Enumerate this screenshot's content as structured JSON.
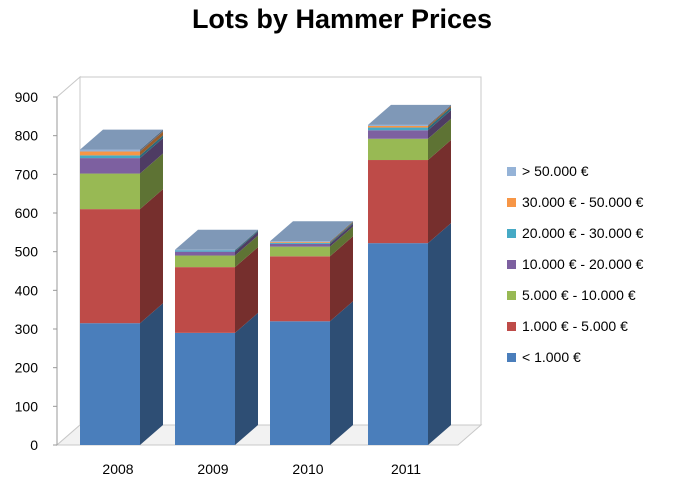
{
  "chart_data": {
    "type": "bar",
    "stacked": true,
    "three_d": true,
    "title": "Lots by Hammer Prices",
    "categories": [
      "2008",
      "2009",
      "2010",
      "2011"
    ],
    "ylim": [
      0,
      900
    ],
    "yticks": [
      0,
      100,
      200,
      300,
      400,
      500,
      600,
      700,
      800,
      900
    ],
    "grid": false,
    "legend_position": "right",
    "series": [
      {
        "name": "< 1.000 €",
        "color": "#4A7EBB",
        "values": [
          315,
          290,
          320,
          522
        ]
      },
      {
        "name": "1.000 € - 5.000 €",
        "color": "#BE4B48",
        "values": [
          295,
          170,
          168,
          215
        ]
      },
      {
        "name": "5.000 € - 10.000 €",
        "color": "#98B954",
        "values": [
          92,
          30,
          25,
          55
        ]
      },
      {
        "name": "10.000 € - 20.000 €",
        "color": "#7D60A0",
        "values": [
          40,
          10,
          7,
          22
        ]
      },
      {
        "name": "20.000 € - 30.000 €",
        "color": "#46AAC5",
        "values": [
          7,
          3,
          3,
          7
        ]
      },
      {
        "name": "30.000 € - 50.000 €",
        "color": "#F79646",
        "values": [
          10,
          0,
          2,
          4
        ]
      },
      {
        "name": "> 50.000 €",
        "color": "#95B3D7",
        "values": [
          5,
          2,
          2,
          3
        ]
      }
    ]
  }
}
